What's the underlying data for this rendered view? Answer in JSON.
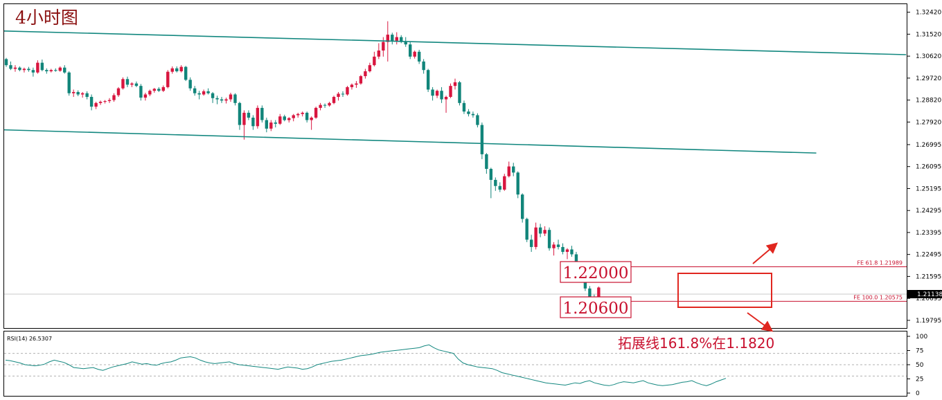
{
  "chart_data": {
    "type": "candlestick",
    "title": "4小时图",
    "timeframe": "4H",
    "price_axis": {
      "ticks": [
        "1.32420",
        "1.31520",
        "1.30620",
        "1.29720",
        "1.28820",
        "1.27920",
        "1.26995",
        "1.26095",
        "1.25195",
        "1.24295",
        "1.23395",
        "1.22495",
        "1.21595",
        "1.20695",
        "1.19795"
      ],
      "current_price": "1.21138",
      "range": [
        1.1948,
        1.3275
      ]
    },
    "candles": [
      [
        1.305,
        1.3055,
        1.3018,
        1.3025
      ],
      [
        1.3025,
        1.304,
        1.3005,
        1.301
      ],
      [
        1.301,
        1.3025,
        1.2998,
        1.3015
      ],
      [
        1.3015,
        1.302,
        1.3,
        1.3005
      ],
      [
        1.3005,
        1.3015,
        1.2995,
        1.301
      ],
      [
        1.301,
        1.3018,
        1.2998,
        1.3005
      ],
      [
        1.3005,
        1.3015,
        1.2978,
        1.2995
      ],
      [
        1.2995,
        1.3045,
        1.299,
        1.3035
      ],
      [
        1.3035,
        1.3048,
        1.3,
        1.3005
      ],
      [
        1.3005,
        1.3012,
        1.299,
        1.3
      ],
      [
        1.3,
        1.301,
        1.2995,
        1.3005
      ],
      [
        1.3005,
        1.3012,
        1.2998,
        1.3002
      ],
      [
        1.3002,
        1.302,
        1.2998,
        1.3015
      ],
      [
        1.3015,
        1.3025,
        1.299,
        1.2995
      ],
      [
        1.2995,
        1.3,
        1.29,
        1.291
      ],
      [
        1.291,
        1.2925,
        1.2895,
        1.2915
      ],
      [
        1.2915,
        1.2922,
        1.2898,
        1.2905
      ],
      [
        1.2905,
        1.2915,
        1.2892,
        1.291
      ],
      [
        1.291,
        1.2918,
        1.2885,
        1.2895
      ],
      [
        1.2895,
        1.2905,
        1.284,
        1.2855
      ],
      [
        1.2855,
        1.2875,
        1.2845,
        1.287
      ],
      [
        1.287,
        1.288,
        1.2862,
        1.2875
      ],
      [
        1.2875,
        1.2882,
        1.2868,
        1.2878
      ],
      [
        1.2878,
        1.289,
        1.287,
        1.2882
      ],
      [
        1.2882,
        1.291,
        1.2875,
        1.2902
      ],
      [
        1.2902,
        1.2935,
        1.2895,
        1.293
      ],
      [
        1.293,
        1.2975,
        1.2925,
        1.2968
      ],
      [
        1.2968,
        1.2978,
        1.2935,
        1.2945
      ],
      [
        1.2945,
        1.2955,
        1.2935,
        1.295
      ],
      [
        1.295,
        1.2958,
        1.2935,
        1.294
      ],
      [
        1.294,
        1.2948,
        1.288,
        1.2892
      ],
      [
        1.2892,
        1.2912,
        1.288,
        1.2905
      ],
      [
        1.2905,
        1.2925,
        1.2898,
        1.292
      ],
      [
        1.292,
        1.2932,
        1.2912,
        1.2928
      ],
      [
        1.2928,
        1.2935,
        1.2915,
        1.292
      ],
      [
        1.292,
        1.2942,
        1.2915,
        1.2935
      ],
      [
        1.2935,
        1.3005,
        1.293,
        1.2998
      ],
      [
        1.2998,
        1.302,
        1.299,
        1.3012
      ],
      [
        1.3012,
        1.302,
        1.2995,
        1.3
      ],
      [
        1.3,
        1.3025,
        1.2995,
        1.3018
      ],
      [
        1.3018,
        1.3022,
        1.296,
        1.2965
      ],
      [
        1.2965,
        1.2975,
        1.292,
        1.293
      ],
      [
        1.293,
        1.294,
        1.29,
        1.291
      ],
      [
        1.291,
        1.292,
        1.2885,
        1.2905
      ],
      [
        1.2905,
        1.2925,
        1.29,
        1.2918
      ],
      [
        1.2918,
        1.293,
        1.2905,
        1.291
      ],
      [
        1.291,
        1.2915,
        1.287,
        1.289
      ],
      [
        1.289,
        1.29,
        1.2865,
        1.2885
      ],
      [
        1.2885,
        1.2895,
        1.287,
        1.288
      ],
      [
        1.288,
        1.2892,
        1.2868,
        1.2885
      ],
      [
        1.2885,
        1.2912,
        1.2875,
        1.2905
      ],
      [
        1.2905,
        1.291,
        1.286,
        1.287
      ],
      [
        1.287,
        1.2875,
        1.276,
        1.278
      ],
      [
        1.278,
        1.284,
        1.272,
        1.283
      ],
      [
        1.283,
        1.284,
        1.28,
        1.281
      ],
      [
        1.281,
        1.282,
        1.276,
        1.2775
      ],
      [
        1.2775,
        1.286,
        1.2765,
        1.285
      ],
      [
        1.285,
        1.286,
        1.279,
        1.28
      ],
      [
        1.28,
        1.281,
        1.275,
        1.2765
      ],
      [
        1.2765,
        1.28,
        1.2755,
        1.279
      ],
      [
        1.279,
        1.28,
        1.277,
        1.2785
      ],
      [
        1.2785,
        1.2825,
        1.278,
        1.2815
      ],
      [
        1.2815,
        1.2822,
        1.2795,
        1.28
      ],
      [
        1.28,
        1.2812,
        1.279,
        1.2808
      ],
      [
        1.2808,
        1.2825,
        1.2795,
        1.282
      ],
      [
        1.282,
        1.283,
        1.281,
        1.2825
      ],
      [
        1.2825,
        1.2835,
        1.2815,
        1.283
      ],
      [
        1.283,
        1.2835,
        1.279,
        1.28
      ],
      [
        1.28,
        1.2815,
        1.276,
        1.281
      ],
      [
        1.281,
        1.2855,
        1.2805,
        1.285
      ],
      [
        1.285,
        1.287,
        1.284,
        1.2862
      ],
      [
        1.2862,
        1.2868,
        1.285,
        1.286
      ],
      [
        1.286,
        1.2875,
        1.2855,
        1.287
      ],
      [
        1.287,
        1.29,
        1.2865,
        1.2895
      ],
      [
        1.2895,
        1.2915,
        1.288,
        1.2908
      ],
      [
        1.2908,
        1.2918,
        1.2895,
        1.2905
      ],
      [
        1.2905,
        1.294,
        1.29,
        1.2935
      ],
      [
        1.2935,
        1.295,
        1.2925,
        1.2945
      ],
      [
        1.2945,
        1.296,
        1.2932,
        1.295
      ],
      [
        1.295,
        1.2985,
        1.2945,
        1.298
      ],
      [
        1.298,
        1.301,
        1.297,
        1.3
      ],
      [
        1.3,
        1.3035,
        1.2995,
        1.3025
      ],
      [
        1.3025,
        1.308,
        1.302,
        1.306
      ],
      [
        1.306,
        1.3115,
        1.305,
        1.3085
      ],
      [
        1.3085,
        1.314,
        1.306,
        1.312
      ],
      [
        1.312,
        1.3205,
        1.304,
        1.315
      ],
      [
        1.315,
        1.3158,
        1.311,
        1.3125
      ],
      [
        1.3125,
        1.316,
        1.311,
        1.314
      ],
      [
        1.314,
        1.3148,
        1.3115,
        1.312
      ],
      [
        1.312,
        1.314,
        1.31,
        1.311
      ],
      [
        1.311,
        1.312,
        1.305,
        1.306
      ],
      [
        1.306,
        1.3085,
        1.3052,
        1.308
      ],
      [
        1.308,
        1.3088,
        1.303,
        1.304
      ],
      [
        1.304,
        1.305,
        1.299,
        1.3005
      ],
      [
        1.3005,
        1.301,
        1.2915,
        1.2925
      ],
      [
        1.2925,
        1.2935,
        1.288,
        1.29
      ],
      [
        1.29,
        1.2925,
        1.289,
        1.292
      ],
      [
        1.292,
        1.2935,
        1.287,
        1.2885
      ],
      [
        1.2885,
        1.29,
        1.283,
        1.2895
      ],
      [
        1.2895,
        1.295,
        1.289,
        1.294
      ],
      [
        1.294,
        1.297,
        1.2925,
        1.2955
      ],
      [
        1.2955,
        1.296,
        1.286,
        1.287
      ],
      [
        1.287,
        1.288,
        1.2825,
        1.2835
      ],
      [
        1.2835,
        1.2845,
        1.2815,
        1.2825
      ],
      [
        1.2825,
        1.2835,
        1.281,
        1.282
      ],
      [
        1.282,
        1.2828,
        1.277,
        1.278
      ],
      [
        1.278,
        1.279,
        1.264,
        1.266
      ],
      [
        1.266,
        1.2665,
        1.258,
        1.26
      ],
      [
        1.26,
        1.2605,
        1.248,
        1.2555
      ],
      [
        1.2555,
        1.2565,
        1.251,
        1.253
      ],
      [
        1.253,
        1.2545,
        1.2505,
        1.2515
      ],
      [
        1.2515,
        1.258,
        1.251,
        1.257
      ],
      [
        1.257,
        1.263,
        1.2565,
        1.261
      ],
      [
        1.261,
        1.2625,
        1.257,
        1.2585
      ],
      [
        1.2585,
        1.259,
        1.248,
        1.2495
      ],
      [
        1.2495,
        1.25,
        1.238,
        1.2395
      ],
      [
        1.2395,
        1.24,
        1.23,
        1.231
      ],
      [
        1.231,
        1.233,
        1.226,
        1.228
      ],
      [
        1.228,
        1.238,
        1.227,
        1.236
      ],
      [
        1.236,
        1.2375,
        1.232,
        1.2335
      ],
      [
        1.2335,
        1.2365,
        1.2325,
        1.235
      ],
      [
        1.235,
        1.236,
        1.2265,
        1.2275
      ],
      [
        1.2275,
        1.23,
        1.2245,
        1.229
      ],
      [
        1.229,
        1.231,
        1.227,
        1.228
      ],
      [
        1.228,
        1.2295,
        1.225,
        1.226
      ],
      [
        1.226,
        1.2275,
        1.223,
        1.227
      ],
      [
        1.227,
        1.2285,
        1.224,
        1.225
      ],
      [
        1.225,
        1.226,
        1.2195,
        1.2205
      ],
      [
        1.2205,
        1.2215,
        1.218,
        1.219
      ],
      [
        1.219,
        1.2195,
        1.21,
        1.211
      ],
      [
        1.211,
        1.212,
        1.202,
        1.207
      ],
      [
        1.207,
        1.2085,
        1.2045,
        1.206
      ],
      [
        1.206,
        1.2118,
        1.2055,
        1.2114
      ]
    ],
    "colors": {
      "up": "#d8163f",
      "down": "#11857a",
      "channel": "#12877f",
      "annotation": "#e0261f"
    },
    "channel_lines": [
      {
        "name": "upper",
        "from": [
          0,
          1.3165
        ],
        "to": [
          1326,
          1.3068
        ]
      },
      {
        "name": "lower",
        "from": [
          0,
          1.276
        ],
        "to": [
          1194,
          1.2665
        ]
      }
    ],
    "fib_levels": [
      {
        "label": "FE 61.8  1.21989",
        "value": 1.21989
      },
      {
        "label": "FE 100.0  1.20575",
        "value": 1.20575
      }
    ],
    "price_labels": [
      "1.22000",
      "1.20600"
    ],
    "annotation": "拓展线161.8%在1.1820",
    "rsi": {
      "label": "RSI(14) 26.5307",
      "ticks": [
        "100",
        "75",
        "50",
        "25",
        "0"
      ],
      "levels": [
        70,
        50,
        30
      ],
      "values": [
        58,
        57,
        55,
        53,
        50,
        49,
        48,
        49,
        51,
        55,
        58,
        56,
        54,
        50,
        45,
        44,
        43,
        44,
        45,
        42,
        40,
        43,
        46,
        48,
        50,
        52,
        55,
        53,
        51,
        52,
        50,
        49,
        52,
        54,
        55,
        58,
        62,
        63,
        64,
        62,
        58,
        55,
        53,
        52,
        53,
        54,
        55,
        52,
        50,
        49,
        48,
        47,
        46,
        45,
        44,
        43,
        42,
        44,
        46,
        45,
        44,
        42,
        43,
        46,
        50,
        52,
        54,
        56,
        57,
        58,
        60,
        62,
        64,
        66,
        67,
        68,
        70,
        72,
        73,
        74,
        75,
        76,
        77,
        78,
        79,
        80,
        83,
        85,
        80,
        76,
        74,
        72,
        70,
        60,
        53,
        50,
        48,
        46,
        45,
        44,
        43,
        40,
        36,
        34,
        32,
        30,
        28,
        26,
        24,
        22,
        20,
        18,
        17,
        16,
        15,
        14,
        16,
        18,
        17,
        20,
        22,
        18,
        16,
        14,
        13,
        15,
        18,
        20,
        19,
        18,
        20,
        22,
        18,
        16,
        14,
        13,
        14,
        15,
        17,
        19,
        20,
        22,
        18,
        15,
        13,
        16,
        20,
        23,
        26
      ]
    }
  }
}
